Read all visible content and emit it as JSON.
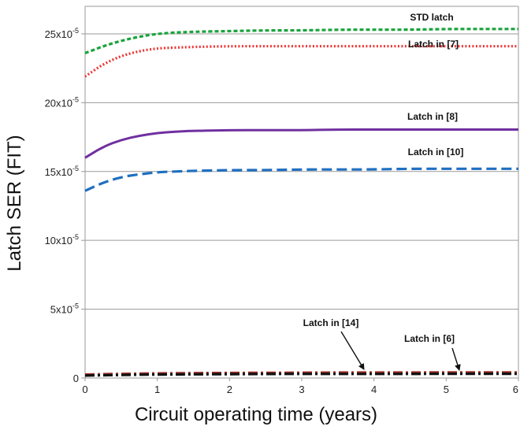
{
  "chart_data": {
    "type": "line",
    "title": "",
    "xlabel": "Circuit operating time (years)",
    "ylabel": "Latch SER (FIT)",
    "xlim": [
      0,
      6
    ],
    "ylim": [
      0,
      0.00027
    ],
    "grid": {
      "horizontal": true,
      "vertical": false
    },
    "x_ticks": [
      "0",
      "1",
      "2",
      "3",
      "4",
      "5",
      "6"
    ],
    "y_ticks": [
      {
        "value": 0,
        "base": "0",
        "exp": ""
      },
      {
        "value": 5e-05,
        "base": "5x10",
        "exp": "-5"
      },
      {
        "value": 0.0001,
        "base": "10x10",
        "exp": "-5"
      },
      {
        "value": 0.00015,
        "base": "15x10",
        "exp": "-5"
      },
      {
        "value": 0.0002,
        "base": "20x10",
        "exp": "-5"
      },
      {
        "value": 0.00025,
        "base": "25x10",
        "exp": "-5"
      }
    ],
    "x": [
      0,
      0.25,
      0.5,
      0.75,
      1,
      1.25,
      1.5,
      2,
      2.5,
      3,
      3.5,
      4,
      4.5,
      5,
      5.5,
      6
    ],
    "series": [
      {
        "name": "STD latch",
        "color": "#1aa33c",
        "style": "short-dash",
        "values": [
          0.000236,
          0.000241,
          0.000245,
          0.000248,
          0.00025,
          0.000251,
          0.0002515,
          0.000252,
          0.0002525,
          0.0002525,
          0.000253,
          0.000253,
          0.000253,
          0.0002535,
          0.0002535,
          0.0002535
        ]
      },
      {
        "name": "Latch in [7]",
        "color": "#ee3333",
        "style": "dotted",
        "values": [
          0.000219,
          0.000228,
          0.000234,
          0.0002375,
          0.0002395,
          0.00024,
          0.0002405,
          0.000241,
          0.000241,
          0.000241,
          0.000241,
          0.000241,
          0.000241,
          0.000241,
          0.000241,
          0.000241
        ]
      },
      {
        "name": "Latch in [8]",
        "color": "#7030a0",
        "style": "solid",
        "values": [
          0.00016,
          0.000168,
          0.000173,
          0.000176,
          0.000178,
          0.000179,
          0.0001795,
          0.00018,
          0.00018,
          0.00018,
          0.0001805,
          0.0001805,
          0.0001805,
          0.0001805,
          0.0001805,
          0.0001805
        ]
      },
      {
        "name": "Latch in [10]",
        "color": "#1f6fc0",
        "style": "long-dash",
        "values": [
          0.000136,
          0.000142,
          0.000146,
          0.000148,
          0.0001495,
          0.00015,
          0.0001505,
          0.000151,
          0.000151,
          0.0001515,
          0.0001515,
          0.0001515,
          0.000152,
          0.000152,
          0.000152,
          0.000152
        ]
      },
      {
        "name": "Latch in [14]",
        "color": "#a0302a",
        "style": "dash-dot",
        "values": [
          2.5e-06,
          2.8e-06,
          3e-06,
          3.2e-06,
          3.4e-06,
          3.5e-06,
          3.6e-06,
          3.7e-06,
          3.8e-06,
          3.9e-06,
          4e-06,
          4e-06,
          4e-06,
          4.1e-06,
          4.1e-06,
          4.1e-06
        ]
      },
      {
        "name": "Latch in [6]",
        "color": "#111111",
        "style": "dash-dot",
        "values": [
          1.8e-06,
          2e-06,
          2.2e-06,
          2.4e-06,
          2.5e-06,
          2.6e-06,
          2.7e-06,
          2.8e-06,
          2.9e-06,
          3e-06,
          3e-06,
          3e-06,
          3e-06,
          3.1e-06,
          3.1e-06,
          3.1e-06
        ]
      }
    ]
  }
}
